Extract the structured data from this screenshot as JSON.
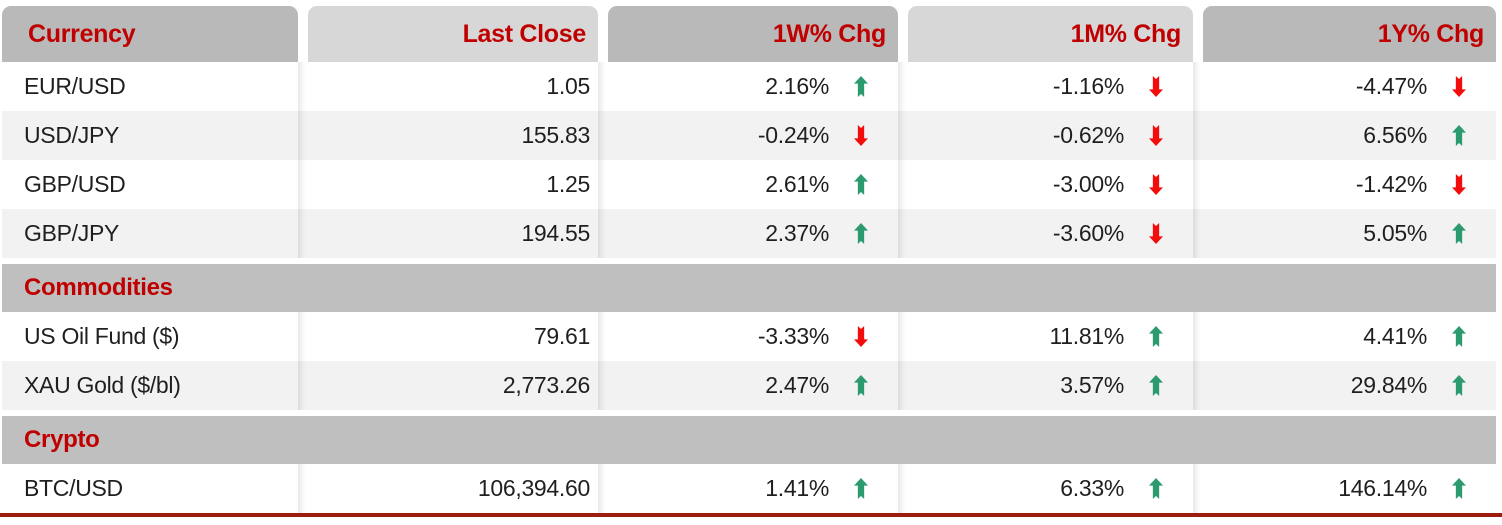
{
  "colors": {
    "header_text": "#c00000",
    "section_text": "#c00000",
    "up_arrow": "#2b9b6e",
    "down_arrow": "#f20c0c",
    "bottom_rule": "#9e1b10",
    "header_dark": "#b9b9b9",
    "header_light": "#d7d7d7",
    "section_bg": "#bfbfbf",
    "stripe": "#f2f2f2"
  },
  "chart_data": {
    "type": "table",
    "columns": [
      "Currency",
      "Last Close",
      "1W% Chg",
      "1M% Chg",
      "1Y% Chg"
    ],
    "rows": [
      {
        "type": "data",
        "name": "EUR/USD",
        "last_close": "1.05",
        "chg_1w": {
          "value": "2.16%",
          "dir": "up"
        },
        "chg_1m": {
          "value": "-1.16%",
          "dir": "down"
        },
        "chg_1y": {
          "value": "-4.47%",
          "dir": "down"
        }
      },
      {
        "type": "data",
        "name": "USD/JPY",
        "last_close": "155.83",
        "chg_1w": {
          "value": "-0.24%",
          "dir": "down"
        },
        "chg_1m": {
          "value": "-0.62%",
          "dir": "down"
        },
        "chg_1y": {
          "value": "6.56%",
          "dir": "up"
        }
      },
      {
        "type": "data",
        "name": "GBP/USD",
        "last_close": "1.25",
        "chg_1w": {
          "value": "2.61%",
          "dir": "up"
        },
        "chg_1m": {
          "value": "-3.00%",
          "dir": "down"
        },
        "chg_1y": {
          "value": "-1.42%",
          "dir": "down"
        }
      },
      {
        "type": "data",
        "name": "GBP/JPY",
        "last_close": "194.55",
        "chg_1w": {
          "value": "2.37%",
          "dir": "up"
        },
        "chg_1m": {
          "value": "-3.60%",
          "dir": "down"
        },
        "chg_1y": {
          "value": "5.05%",
          "dir": "up"
        }
      },
      {
        "type": "section",
        "label": "Commodities"
      },
      {
        "type": "data",
        "name": "US Oil Fund ($)",
        "last_close": "79.61",
        "chg_1w": {
          "value": "-3.33%",
          "dir": "down"
        },
        "chg_1m": {
          "value": "11.81%",
          "dir": "up"
        },
        "chg_1y": {
          "value": "4.41%",
          "dir": "up"
        }
      },
      {
        "type": "data",
        "name": "XAU Gold ($/bl)",
        "last_close": "2,773.26",
        "chg_1w": {
          "value": "2.47%",
          "dir": "up"
        },
        "chg_1m": {
          "value": "3.57%",
          "dir": "up"
        },
        "chg_1y": {
          "value": "29.84%",
          "dir": "up"
        }
      },
      {
        "type": "section",
        "label": "Crypto"
      },
      {
        "type": "data",
        "name": "BTC/USD",
        "last_close": "106,394.60",
        "chg_1w": {
          "value": "1.41%",
          "dir": "up"
        },
        "chg_1m": {
          "value": "6.33%",
          "dir": "up"
        },
        "chg_1y": {
          "value": "146.14%",
          "dir": "up"
        }
      }
    ]
  }
}
